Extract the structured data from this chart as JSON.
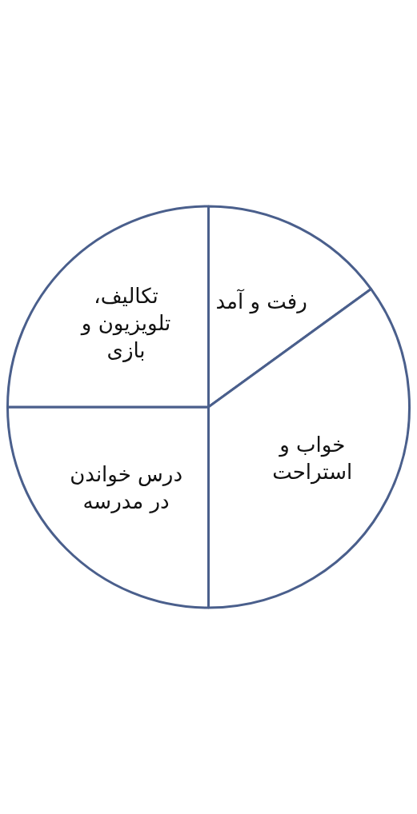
{
  "chart_data": {
    "type": "pie",
    "categories": [
      "رفت و آمد",
      "خواب و استراحت",
      "درس خواندن در مدرسه",
      "تکالیف، تلویزیون و بازی"
    ],
    "values": [
      15,
      35,
      25,
      25
    ],
    "colors": [
      "#ffffff",
      "#ffffff",
      "#ffffff",
      "#ffffff"
    ],
    "legend": false
  }
}
